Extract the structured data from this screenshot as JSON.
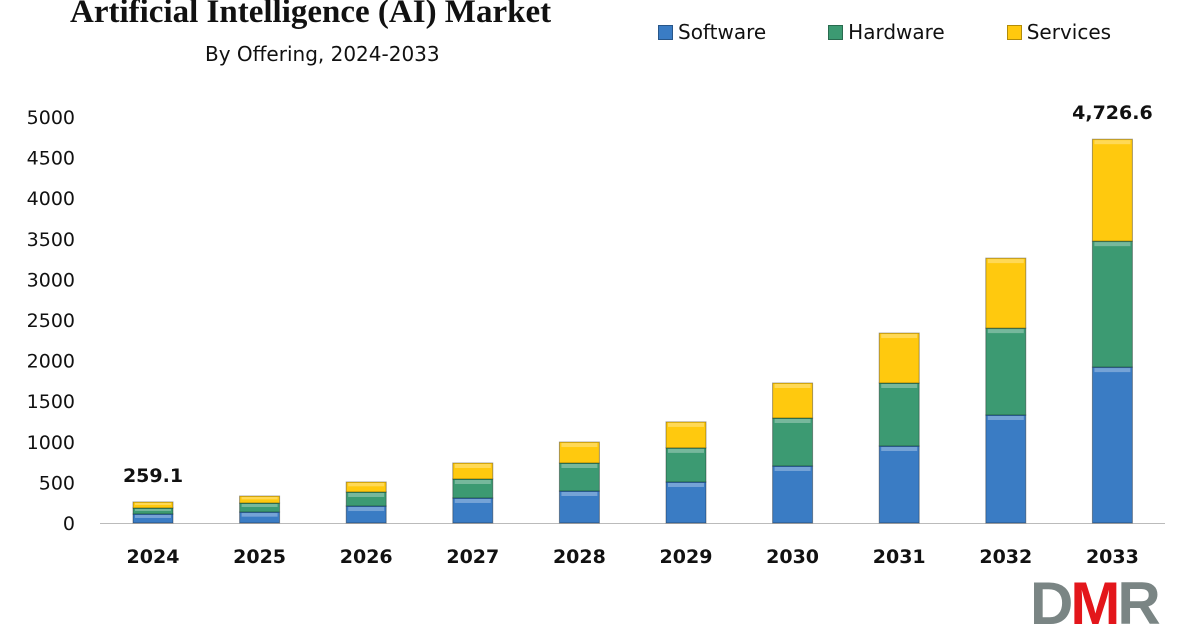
{
  "chart_data": {
    "type": "bar",
    "stacked": true,
    "title": "Artificial Intelligence (AI) Market",
    "subtitle": "By Offering, 2024-2033",
    "xlabel": "",
    "ylabel": "",
    "categories": [
      "2024",
      "2025",
      "2026",
      "2027",
      "2028",
      "2029",
      "2030",
      "2031",
      "2032",
      "2033"
    ],
    "series": [
      {
        "name": "Software",
        "color": "#3a7cc4",
        "values": [
          111,
          135,
          209,
          308,
          394,
          505,
          702,
          948,
          1330,
          1920
        ]
      },
      {
        "name": "Hardware",
        "color": "#3c9a72",
        "values": [
          74,
          111,
          173,
          234,
          345,
          420,
          591,
          776,
          1070,
          1551
        ]
      },
      {
        "name": "Services",
        "color": "#ffc90e",
        "values": [
          74.1,
          86,
          123,
          197,
          258,
          320,
          431,
          615,
          862,
          1255.6
        ]
      }
    ],
    "ylim": [
      0,
      5000
    ],
    "yticks": [
      0,
      500,
      1000,
      1500,
      2000,
      2500,
      3000,
      3500,
      4000,
      4500,
      5000
    ],
    "grid": false,
    "legend_position": "top-right",
    "annotations": [
      {
        "category": "2024",
        "text": "259.1"
      },
      {
        "category": "2033",
        "text": "4,726.6"
      }
    ]
  },
  "logo": {
    "text": "DMR",
    "colors": [
      "#7a8584",
      "#e3161b",
      "#7a8584"
    ]
  }
}
